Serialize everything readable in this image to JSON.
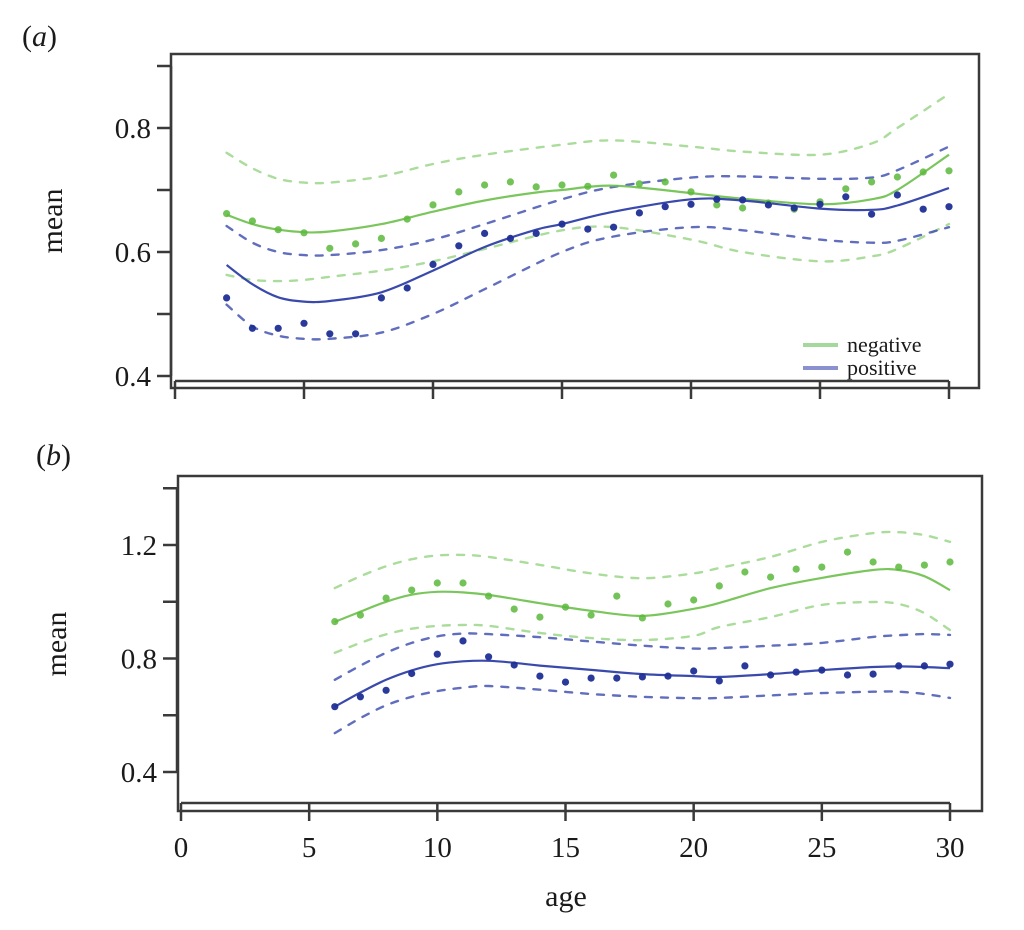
{
  "figure": {
    "panels": [
      "(a)",
      "(b)"
    ]
  },
  "chart_data": [
    {
      "type": "line",
      "panel_label": "(a)",
      "title": "",
      "xlabel": "",
      "ylabel": "mean",
      "xlim": [
        0,
        30
      ],
      "ylim": [
        0.4,
        0.9
      ],
      "xticks": [
        0,
        5,
        10,
        15,
        20,
        25,
        30
      ],
      "xtick_labels": [
        "",
        "",
        "",
        "",
        "",
        "",
        ""
      ],
      "yticks": [
        0.4,
        0.5,
        0.6,
        0.7,
        0.8,
        0.9
      ],
      "ytick_labels": [
        "0.4",
        "",
        "0.6",
        "",
        "0.8",
        ""
      ],
      "grid": false,
      "legend": {
        "placement": "bottom-right",
        "entries": [
          "negative",
          "positive"
        ]
      },
      "series": [
        {
          "name": "negative",
          "color": "#6cc04a",
          "legend_color": "#a4d89c",
          "band_color": "#8fd07a",
          "points": {
            "x": [
              2,
              3,
              4,
              5,
              6,
              7,
              8,
              9,
              10,
              11,
              12,
              13,
              14,
              15,
              16,
              17,
              18,
              19,
              20,
              21,
              22,
              23,
              24,
              25,
              26,
              27,
              28,
              29,
              30
            ],
            "y": [
              0.662,
              0.65,
              0.636,
              0.631,
              0.606,
              0.613,
              0.622,
              0.653,
              0.676,
              0.697,
              0.708,
              0.713,
              0.705,
              0.708,
              0.706,
              0.724,
              0.71,
              0.713,
              0.697,
              0.676,
              0.671,
              0.679,
              0.669,
              0.681,
              0.702,
              0.713,
              0.721,
              0.729,
              0.731
            ]
          },
          "fit": {
            "x": [
              2,
              3,
              4,
              5,
              6,
              8,
              10,
              12,
              14,
              15,
              17,
              20,
              22,
              25,
              27,
              28,
              30
            ],
            "y": [
              0.66,
              0.645,
              0.636,
              0.632,
              0.633,
              0.645,
              0.665,
              0.683,
              0.696,
              0.7,
              0.707,
              0.695,
              0.686,
              0.677,
              0.685,
              0.7,
              0.757
            ]
          },
          "upper": {
            "x": [
              2,
              3,
              4,
              5,
              6,
              8,
              10,
              12,
              15,
              17,
              20,
              22,
              25,
              27,
              28,
              30
            ],
            "y": [
              0.76,
              0.735,
              0.718,
              0.712,
              0.712,
              0.722,
              0.742,
              0.757,
              0.773,
              0.78,
              0.77,
              0.762,
              0.757,
              0.775,
              0.8,
              0.855
            ]
          },
          "lower": {
            "x": [
              2,
              3,
              4,
              5,
              6,
              8,
              10,
              12,
              15,
              17,
              20,
              22,
              25,
              27,
              28,
              30
            ],
            "y": [
              0.563,
              0.555,
              0.553,
              0.555,
              0.56,
              0.57,
              0.585,
              0.605,
              0.635,
              0.64,
              0.62,
              0.6,
              0.585,
              0.593,
              0.605,
              0.645
            ]
          }
        },
        {
          "name": "positive",
          "color": "#2e3fa8",
          "legend_color": "#8a90d0",
          "band_color": "#3a4aae",
          "points": {
            "x": [
              2,
              3,
              4,
              5,
              6,
              7,
              8,
              9,
              10,
              11,
              12,
              13,
              14,
              15,
              16,
              17,
              18,
              19,
              20,
              21,
              22,
              23,
              24,
              25,
              26,
              27,
              28,
              29,
              30
            ],
            "y": [
              0.526,
              0.477,
              0.477,
              0.485,
              0.468,
              0.468,
              0.526,
              0.542,
              0.58,
              0.61,
              0.63,
              0.622,
              0.63,
              0.645,
              0.637,
              0.64,
              0.663,
              0.673,
              0.677,
              0.685,
              0.684,
              0.676,
              0.671,
              0.677,
              0.689,
              0.661,
              0.692,
              0.669,
              0.673
            ]
          },
          "fit": {
            "x": [
              2,
              3,
              4,
              5,
              6,
              8,
              10,
              12,
              14,
              15,
              17,
              20,
              22,
              25,
              27,
              28,
              30
            ],
            "y": [
              0.579,
              0.548,
              0.527,
              0.52,
              0.521,
              0.535,
              0.57,
              0.608,
              0.636,
              0.645,
              0.665,
              0.685,
              0.683,
              0.67,
              0.668,
              0.675,
              0.703
            ]
          },
          "upper": {
            "x": [
              2,
              3,
              4,
              5,
              6,
              8,
              10,
              12,
              15,
              17,
              20,
              22,
              25,
              27,
              28,
              30
            ],
            "y": [
              0.642,
              0.615,
              0.6,
              0.595,
              0.595,
              0.603,
              0.62,
              0.645,
              0.685,
              0.705,
              0.72,
              0.722,
              0.718,
              0.72,
              0.732,
              0.77
            ]
          },
          "lower": {
            "x": [
              2,
              3,
              4,
              5,
              6,
              8,
              10,
              12,
              15,
              17,
              20,
              22,
              25,
              27,
              28,
              30
            ],
            "y": [
              0.515,
              0.48,
              0.465,
              0.46,
              0.46,
              0.47,
              0.5,
              0.54,
              0.6,
              0.625,
              0.64,
              0.635,
              0.62,
              0.615,
              0.618,
              0.64
            ]
          }
        }
      ]
    },
    {
      "type": "line",
      "panel_label": "(b)",
      "title": "",
      "xlabel": "age",
      "ylabel": "mean",
      "xlim": [
        0,
        30
      ],
      "ylim": [
        0.4,
        1.4
      ],
      "xticks": [
        0,
        5,
        10,
        15,
        20,
        25,
        30
      ],
      "xtick_labels": [
        "0",
        "5",
        "10",
        "15",
        "20",
        "25",
        "30"
      ],
      "yticks": [
        0.4,
        0.6,
        0.8,
        1.0,
        1.2,
        1.4
      ],
      "ytick_labels": [
        "0.4",
        "",
        "0.8",
        "",
        "1.2",
        ""
      ],
      "grid": false,
      "series": [
        {
          "name": "negative",
          "color": "#6cc04a",
          "band_color": "#8fd07a",
          "points": {
            "x": [
              6,
              7,
              8,
              9,
              10,
              11,
              12,
              13,
              14,
              15,
              16,
              17,
              18,
              19,
              20,
              21,
              22,
              23,
              24,
              25,
              26,
              27,
              28,
              29,
              30
            ],
            "y": [
              0.93,
              0.953,
              1.013,
              1.041,
              1.066,
              1.066,
              1.02,
              0.974,
              0.946,
              0.981,
              0.953,
              1.02,
              0.943,
              0.992,
              1.006,
              1.056,
              1.105,
              1.087,
              1.115,
              1.122,
              1.175,
              1.14,
              1.122,
              1.129,
              1.14
            ]
          },
          "fit": {
            "x": [
              6,
              7,
              8,
              9,
              10,
              11,
              12,
              14,
              15,
              16,
              18,
              20,
              21,
              23,
              25,
              27,
              28,
              29,
              30
            ],
            "y": [
              0.929,
              0.965,
              1.0,
              1.025,
              1.035,
              1.033,
              1.024,
              0.995,
              0.981,
              0.968,
              0.95,
              0.975,
              0.996,
              1.048,
              1.084,
              1.112,
              1.112,
              1.09,
              1.041
            ]
          },
          "upper": {
            "x": [
              6,
              7,
              8,
              9,
              10,
              11,
              12,
              14,
              16,
              18,
              20,
              21,
              23,
              25,
              27,
              28,
              29,
              30
            ],
            "y": [
              1.048,
              1.09,
              1.125,
              1.15,
              1.163,
              1.165,
              1.158,
              1.13,
              1.1,
              1.083,
              1.1,
              1.119,
              1.158,
              1.211,
              1.242,
              1.245,
              1.235,
              1.211
            ]
          },
          "lower": {
            "x": [
              6,
              7,
              8,
              9,
              10,
              11,
              12,
              14,
              16,
              18,
              20,
              21,
              23,
              25,
              27,
              28,
              29,
              30
            ],
            "y": [
              0.82,
              0.855,
              0.885,
              0.905,
              0.915,
              0.918,
              0.915,
              0.89,
              0.872,
              0.865,
              0.88,
              0.911,
              0.946,
              0.989,
              0.999,
              0.992,
              0.96,
              0.9
            ]
          }
        },
        {
          "name": "positive",
          "color": "#2e3fa8",
          "band_color": "#3a4aae",
          "points": {
            "x": [
              6,
              7,
              8,
              9,
              10,
              11,
              12,
              13,
              14,
              15,
              16,
              17,
              18,
              19,
              20,
              21,
              22,
              23,
              24,
              25,
              26,
              27,
              28,
              29,
              30
            ],
            "y": [
              0.63,
              0.665,
              0.688,
              0.747,
              0.815,
              0.862,
              0.806,
              0.777,
              0.738,
              0.717,
              0.731,
              0.731,
              0.735,
              0.738,
              0.756,
              0.721,
              0.774,
              0.742,
              0.752,
              0.759,
              0.742,
              0.745,
              0.774,
              0.774,
              0.78
            ]
          },
          "fit": {
            "x": [
              6,
              7,
              8,
              9,
              10,
              11,
              12,
              13,
              14,
              16,
              18,
              20,
              21,
              23,
              25,
              27,
              28,
              29,
              30
            ],
            "y": [
              0.63,
              0.68,
              0.725,
              0.758,
              0.78,
              0.79,
              0.792,
              0.785,
              0.775,
              0.76,
              0.745,
              0.738,
              0.735,
              0.745,
              0.759,
              0.77,
              0.772,
              0.77,
              0.766
            ]
          },
          "upper": {
            "x": [
              6,
              7,
              8,
              9,
              10,
              11,
              12,
              14,
              16,
              18,
              20,
              21,
              23,
              25,
              27,
              28,
              29,
              30
            ],
            "y": [
              0.725,
              0.775,
              0.82,
              0.855,
              0.878,
              0.888,
              0.886,
              0.875,
              0.86,
              0.845,
              0.835,
              0.837,
              0.845,
              0.855,
              0.876,
              0.882,
              0.886,
              0.883
            ]
          },
          "lower": {
            "x": [
              6,
              7,
              8,
              9,
              10,
              11,
              12,
              14,
              16,
              18,
              20,
              21,
              23,
              25,
              27,
              28,
              29,
              30
            ],
            "y": [
              0.537,
              0.59,
              0.635,
              0.665,
              0.685,
              0.697,
              0.703,
              0.69,
              0.675,
              0.665,
              0.66,
              0.661,
              0.67,
              0.678,
              0.683,
              0.683,
              0.675,
              0.661
            ]
          }
        }
      ]
    }
  ]
}
